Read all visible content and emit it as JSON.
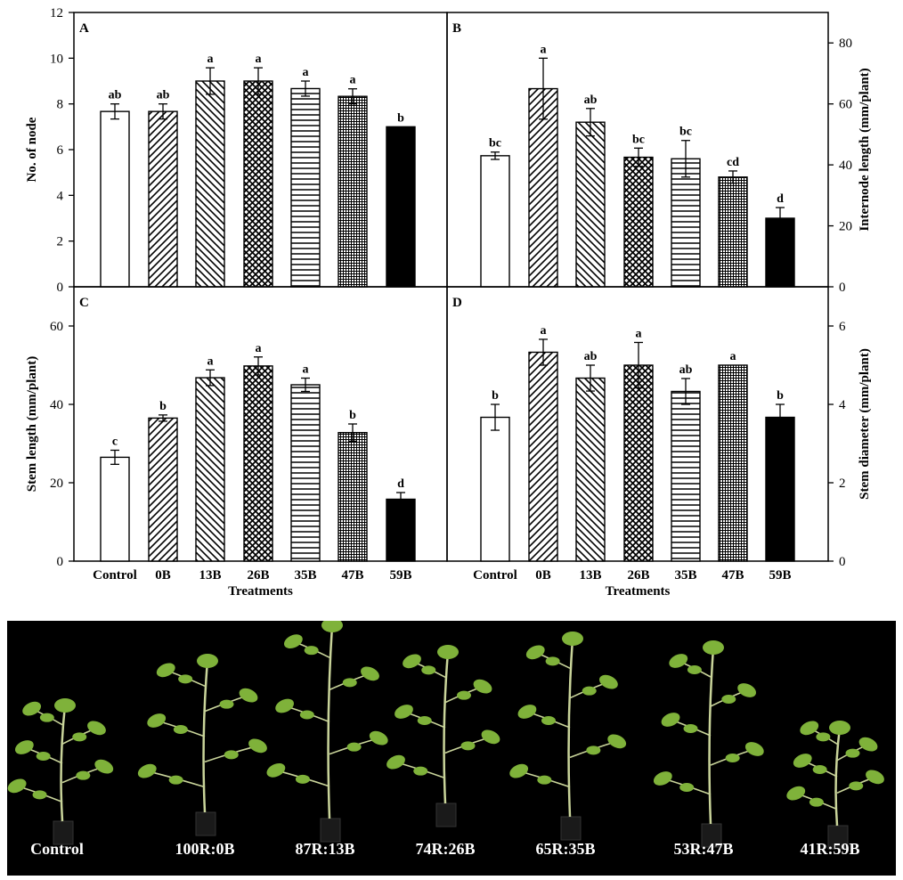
{
  "chart_data": [
    {
      "panel": "A",
      "type": "bar",
      "categories": [
        "Control",
        "0B",
        "13B",
        "26B",
        "35B",
        "47B",
        "59B"
      ],
      "values": [
        7.67,
        7.67,
        9.0,
        9.0,
        8.67,
        8.33,
        7.0
      ],
      "errors": [
        0.33,
        0.33,
        0.58,
        0.58,
        0.33,
        0.33,
        0.0
      ],
      "letters": [
        "ab",
        "ab",
        "a",
        "a",
        "a",
        "a",
        "b"
      ],
      "ylabel": "No. of node",
      "ylim": [
        0,
        12
      ],
      "yticks": [
        0,
        2,
        4,
        6,
        8,
        10,
        12
      ],
      "xlabel": "",
      "axis_side": "left"
    },
    {
      "panel": "B",
      "type": "bar",
      "categories": [
        "Control",
        "0B",
        "13B",
        "26B",
        "35B",
        "47B",
        "59B"
      ],
      "values": [
        43,
        65,
        54,
        42.5,
        42,
        36,
        22.5
      ],
      "errors": [
        1.2,
        10,
        4.5,
        3,
        6,
        2,
        3.5
      ],
      "letters": [
        "bc",
        "a",
        "ab",
        "bc",
        "bc",
        "cd",
        "d"
      ],
      "ylabel": "Internode length (mm/plant)",
      "ylim": [
        0,
        90
      ],
      "yticks": [
        0,
        20,
        40,
        60,
        80
      ],
      "xlabel": "",
      "axis_side": "right"
    },
    {
      "panel": "C",
      "type": "bar",
      "categories": [
        "Control",
        "0B",
        "13B",
        "26B",
        "35B",
        "47B",
        "59B"
      ],
      "values": [
        26.5,
        36.5,
        46.8,
        49.8,
        45,
        32.8,
        15.8
      ],
      "errors": [
        1.8,
        0.8,
        2,
        2.3,
        1.7,
        2.2,
        1.7
      ],
      "letters": [
        "c",
        "b",
        "a",
        "a",
        "a",
        "b",
        "d"
      ],
      "ylabel": "Stem length (mm/plant)",
      "ylim": [
        0,
        70
      ],
      "yticks": [
        0,
        20,
        40,
        60
      ],
      "xlabel": "Treatments",
      "axis_side": "left"
    },
    {
      "panel": "D",
      "type": "bar",
      "categories": [
        "Control",
        "0B",
        "13B",
        "26B",
        "35B",
        "47B",
        "59B"
      ],
      "values": [
        3.67,
        5.33,
        4.67,
        5.0,
        4.33,
        5.0,
        3.67
      ],
      "errors": [
        0.33,
        0.33,
        0.33,
        0.58,
        0.33,
        0.0,
        0.33
      ],
      "letters": [
        "b",
        "a",
        "ab",
        "a",
        "ab",
        "a",
        "b"
      ],
      "ylabel": "Stem diameter (mm/plant)",
      "ylim": [
        0,
        7
      ],
      "yticks": [
        0,
        2,
        4,
        6
      ],
      "xlabel": "Treatments",
      "axis_side": "right"
    }
  ],
  "patterns": [
    "none",
    "diag-right",
    "diag-left",
    "crosshatch",
    "horizontal",
    "grid-fine",
    "solid"
  ],
  "colors": {
    "bar_fill": "#ffffff",
    "bar_stroke": "#000000",
    "solid": "#000000",
    "photo_bg": "#000000",
    "leaf": "#7fb23a",
    "stem": "#c9d49a",
    "pot": "#1a1a1a"
  },
  "photo": {
    "labels": [
      "Control",
      "100R:0B",
      "87R:13B",
      "74R:26B",
      "65R:35B",
      "53R:47B",
      "41R:59B"
    ]
  }
}
